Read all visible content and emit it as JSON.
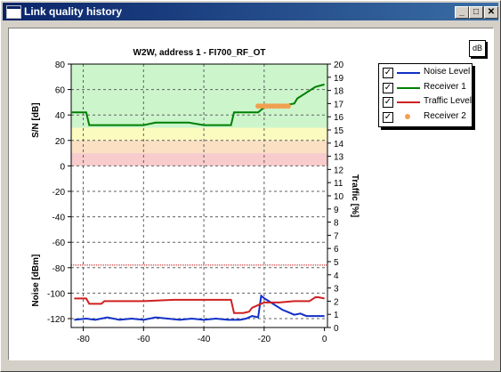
{
  "window": {
    "title": "Link quality history",
    "minimize_glyph": "_",
    "maximize_glyph": "□",
    "close_glyph": "✕"
  },
  "toolbar": {
    "db_button_label": "dB"
  },
  "legend": {
    "items": [
      {
        "label": "Noise Level",
        "color": "#1030c8",
        "checked": true,
        "kind": "line"
      },
      {
        "label": "Receiver 1",
        "color": "#008000",
        "checked": true,
        "kind": "line"
      },
      {
        "label": "Traffic Level",
        "color": "#d02020",
        "checked": true,
        "kind": "line"
      },
      {
        "label": "Receiver 2",
        "color": "#f0a050",
        "checked": true,
        "kind": "dot"
      }
    ]
  },
  "chart_data": {
    "type": "line",
    "title": "W2W, address 1 - FI700_RF_OT",
    "ylabel_top": "S/N [dB]",
    "ylabel_bottom": "Noise [dBm]",
    "ylabel_right": "Traffic [%]",
    "xlim": [
      -84,
      1
    ],
    "ylim": [
      -127,
      80
    ],
    "y2lim": [
      0,
      20
    ],
    "x_ticks": [
      -80,
      -60,
      -40,
      -20,
      0
    ],
    "y_ticks": [
      80,
      60,
      40,
      20,
      0,
      -20,
      -40,
      -60,
      -80,
      -100,
      -120
    ],
    "y2_ticks": [
      20,
      19,
      18,
      17,
      16,
      15,
      14,
      13,
      12,
      11,
      10,
      9,
      8,
      7,
      6,
      5,
      4,
      3,
      2,
      1,
      0
    ],
    "bands": [
      {
        "from": 30,
        "to": 80,
        "color": "#ccf5cc"
      },
      {
        "from": 20,
        "to": 30,
        "color": "#fbfbc0"
      },
      {
        "from": 10,
        "to": 20,
        "color": "#fbe0c4"
      },
      {
        "from": 0,
        "to": 10,
        "color": "#f8cccc"
      }
    ],
    "threshold_line": {
      "y": -78,
      "color": "#c00000"
    },
    "grid": true,
    "series": [
      {
        "name": "Receiver 1",
        "color": "#008000",
        "axis": "left",
        "x": [
          -84,
          -79,
          -78,
          -60,
          -56,
          -45,
          -40,
          -35,
          -31,
          -30,
          -22,
          -20,
          -15,
          -10,
          -9,
          -3,
          0
        ],
        "y": [
          42,
          42,
          32,
          32,
          34,
          34,
          32,
          32,
          32,
          42,
          42,
          46,
          47,
          49,
          53,
          62,
          64
        ]
      },
      {
        "name": "Noise Level",
        "color": "#1030c8",
        "axis": "left",
        "x": [
          -83,
          -79,
          -76,
          -72,
          -68,
          -64,
          -60,
          -56,
          -52,
          -48,
          -44,
          -40,
          -36,
          -32,
          -30,
          -28,
          -26,
          -24,
          -22,
          -21,
          -20,
          -18,
          -16,
          -14,
          -12,
          -10,
          -8,
          -6,
          -4,
          -2,
          0
        ],
        "y": [
          -121,
          -120,
          -121,
          -119,
          -121,
          -120,
          -121,
          -119,
          -120,
          -121,
          -120,
          -121,
          -120,
          -121,
          -121,
          -121,
          -120,
          -118,
          -119,
          -102,
          -104,
          -107,
          -110,
          -113,
          -115,
          -117,
          -116,
          -118,
          -118,
          -118,
          -118
        ]
      },
      {
        "name": "Traffic Level",
        "color": "#d02020",
        "axis": "right",
        "x": [
          -83,
          -79,
          -78,
          -74,
          -73,
          -70,
          -60,
          -50,
          -40,
          -33,
          -31,
          -30,
          -27,
          -25,
          -24,
          -22,
          -20,
          -15,
          -10,
          -5,
          -3,
          -2,
          0
        ],
        "y": [
          2.2,
          2.2,
          1.8,
          1.8,
          2.0,
          2.0,
          2.0,
          2.1,
          2.1,
          2.1,
          2.1,
          1.1,
          1.1,
          1.2,
          1.5,
          1.7,
          1.9,
          1.9,
          2.0,
          2.0,
          2.3,
          2.3,
          2.2
        ]
      },
      {
        "name": "Receiver 2",
        "color": "#f0a050",
        "axis": "left",
        "kind": "scatter",
        "x": [
          -22,
          -21,
          -20,
          -19,
          -18,
          -17,
          -16,
          -15,
          -14,
          -13,
          -12
        ],
        "y": [
          47,
          47,
          47,
          47,
          47,
          47,
          47,
          47,
          47,
          47,
          47
        ]
      }
    ]
  }
}
